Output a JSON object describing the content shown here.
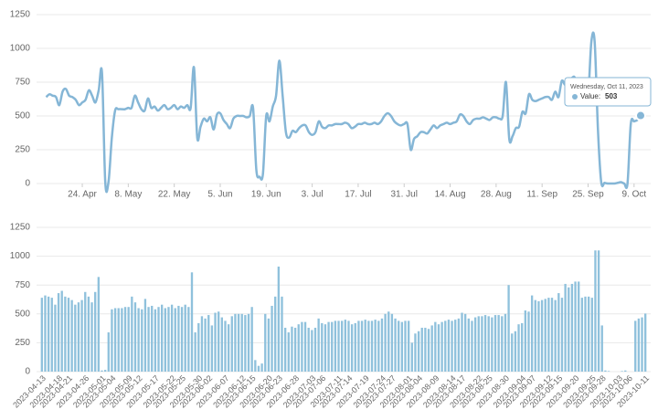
{
  "chart_data": [
    {
      "type": "line",
      "color": "#85b6d6",
      "grid": true,
      "xlim": [
        "2023-04-13",
        "2023-10-11"
      ],
      "x": [
        "2023-04-13",
        "2023-04-14",
        "2023-04-15",
        "2023-04-16",
        "2023-04-17",
        "2023-04-18",
        "2023-04-19",
        "2023-04-20",
        "2023-04-21",
        "2023-04-22",
        "2023-04-23",
        "2023-04-24",
        "2023-04-25",
        "2023-04-26",
        "2023-04-27",
        "2023-04-28",
        "2023-04-29",
        "2023-04-30",
        "2023-05-01",
        "2023-05-02",
        "2023-05-03",
        "2023-05-04",
        "2023-05-05",
        "2023-05-06",
        "2023-05-07",
        "2023-05-08",
        "2023-05-09",
        "2023-05-10",
        "2023-05-11",
        "2023-05-12",
        "2023-05-13",
        "2023-05-14",
        "2023-05-15",
        "2023-05-16",
        "2023-05-17",
        "2023-05-18",
        "2023-05-19",
        "2023-05-20",
        "2023-05-21",
        "2023-05-22",
        "2023-05-23",
        "2023-05-24",
        "2023-05-25",
        "2023-05-26",
        "2023-05-27",
        "2023-05-28",
        "2023-05-29",
        "2023-05-30",
        "2023-05-31",
        "2023-06-01",
        "2023-06-02",
        "2023-06-03",
        "2023-06-04",
        "2023-06-05",
        "2023-06-06",
        "2023-06-07",
        "2023-06-08",
        "2023-06-09",
        "2023-06-10",
        "2023-06-11",
        "2023-06-12",
        "2023-06-13",
        "2023-06-14",
        "2023-06-15",
        "2023-06-16",
        "2023-06-17",
        "2023-06-18",
        "2023-06-19",
        "2023-06-20",
        "2023-06-21",
        "2023-06-22",
        "2023-06-23",
        "2023-06-24",
        "2023-06-25",
        "2023-06-26",
        "2023-06-27",
        "2023-06-28",
        "2023-06-29",
        "2023-06-30",
        "2023-07-01",
        "2023-07-02",
        "2023-07-03",
        "2023-07-04",
        "2023-07-05",
        "2023-07-06",
        "2023-07-07",
        "2023-07-08",
        "2023-07-09",
        "2023-07-10",
        "2023-07-11",
        "2023-07-12",
        "2023-07-13",
        "2023-07-14",
        "2023-07-15",
        "2023-07-16",
        "2023-07-17",
        "2023-07-18",
        "2023-07-19",
        "2023-07-20",
        "2023-07-21",
        "2023-07-22",
        "2023-07-23",
        "2023-07-24",
        "2023-07-25",
        "2023-07-26",
        "2023-07-27",
        "2023-07-28",
        "2023-07-29",
        "2023-07-30",
        "2023-07-31",
        "2023-08-01",
        "2023-08-02",
        "2023-08-03",
        "2023-08-04",
        "2023-08-05",
        "2023-08-06",
        "2023-08-07",
        "2023-08-08",
        "2023-08-09",
        "2023-08-10",
        "2023-08-11",
        "2023-08-12",
        "2023-08-13",
        "2023-08-14",
        "2023-08-15",
        "2023-08-16",
        "2023-08-17",
        "2023-08-18",
        "2023-08-19",
        "2023-08-20",
        "2023-08-21",
        "2023-08-22",
        "2023-08-23",
        "2023-08-24",
        "2023-08-25",
        "2023-08-26",
        "2023-08-27",
        "2023-08-28",
        "2023-08-29",
        "2023-08-30",
        "2023-08-31",
        "2023-09-01",
        "2023-09-02",
        "2023-09-03",
        "2023-09-04",
        "2023-09-05",
        "2023-09-06",
        "2023-09-07",
        "2023-09-08",
        "2023-09-09",
        "2023-09-10",
        "2023-09-11",
        "2023-09-12",
        "2023-09-13",
        "2023-09-14",
        "2023-09-15",
        "2023-09-16",
        "2023-09-17",
        "2023-09-18",
        "2023-09-19",
        "2023-09-20",
        "2023-09-21",
        "2023-09-22",
        "2023-09-23",
        "2023-09-24",
        "2023-09-25",
        "2023-09-26",
        "2023-09-27",
        "2023-09-28",
        "2023-09-29",
        "2023-09-30",
        "2023-10-01",
        "2023-10-02",
        "2023-10-03",
        "2023-10-04",
        "2023-10-05",
        "2023-10-06",
        "2023-10-07",
        "2023-10-08",
        "2023-10-09",
        "2023-10-10",
        "2023-10-11"
      ],
      "values": [
        640,
        660,
        650,
        640,
        580,
        680,
        700,
        650,
        640,
        620,
        580,
        600,
        620,
        690,
        650,
        600,
        690,
        820,
        10,
        15,
        340,
        540,
        550,
        550,
        550,
        560,
        560,
        650,
        600,
        550,
        540,
        630,
        560,
        570,
        540,
        560,
        580,
        550,
        560,
        580,
        550,
        570,
        560,
        580,
        560,
        860,
        340,
        420,
        480,
        460,
        490,
        400,
        510,
        520,
        470,
        440,
        410,
        480,
        500,
        500,
        500,
        490,
        500,
        560,
        100,
        50,
        70,
        500,
        460,
        570,
        650,
        910,
        650,
        380,
        340,
        390,
        380,
        410,
        430,
        430,
        380,
        360,
        380,
        460,
        420,
        410,
        430,
        430,
        440,
        440,
        440,
        450,
        440,
        410,
        420,
        440,
        440,
        450,
        440,
        440,
        450,
        440,
        460,
        500,
        520,
        500,
        460,
        440,
        430,
        440,
        440,
        250,
        330,
        350,
        380,
        380,
        370,
        400,
        430,
        410,
        430,
        440,
        450,
        440,
        450,
        460,
        510,
        500,
        460,
        440,
        470,
        480,
        480,
        490,
        480,
        470,
        490,
        490,
        480,
        500,
        750,
        330,
        350,
        410,
        420,
        530,
        520,
        660,
        620,
        610,
        620,
        630,
        640,
        640,
        620,
        680,
        640,
        760,
        730,
        760,
        780,
        780,
        640,
        650,
        650,
        640,
        1050,
        1050,
        400,
        10,
        5,
        0,
        0,
        0,
        5,
        10,
        0,
        0,
        440,
        460,
        470,
        503
      ],
      "ylim": [
        0,
        1250
      ],
      "yticks": [
        0,
        250,
        500,
        750,
        1000,
        1250
      ],
      "xticks": [
        {
          "value": "2023-04-24",
          "label": "24. Apr"
        },
        {
          "value": "2023-05-08",
          "label": "8. May"
        },
        {
          "value": "2023-05-22",
          "label": "22. May"
        },
        {
          "value": "2023-06-05",
          "label": "5. Jun"
        },
        {
          "value": "2023-06-19",
          "label": "19. Jun"
        },
        {
          "value": "2023-07-03",
          "label": "3. Jul"
        },
        {
          "value": "2023-07-17",
          "label": "17. Jul"
        },
        {
          "value": "2023-07-31",
          "label": "31. Jul"
        },
        {
          "value": "2023-08-14",
          "label": "14. Aug"
        },
        {
          "value": "2023-08-28",
          "label": "28. Aug"
        },
        {
          "value": "2023-09-11",
          "label": "11. Sep"
        },
        {
          "value": "2023-09-25",
          "label": "25. Sep"
        },
        {
          "value": "2023-10-09",
          "label": "9. Oct"
        }
      ],
      "tooltip": {
        "title": "Wednesday, Oct 11, 2023",
        "label": "Value:"
      }
    },
    {
      "type": "bar",
      "color": "#8fc1dc",
      "grid": true,
      "categories": [
        "2023-04-13",
        null,
        null,
        null,
        null,
        "2023-04-18",
        null,
        null,
        "2023-04-21",
        null,
        null,
        null,
        null,
        "2023-04-26",
        null,
        null,
        null,
        null,
        "2023-05-01",
        null,
        null,
        "2023-05-04",
        null,
        null,
        null,
        null,
        "2023-05-09",
        null,
        null,
        "2023-05-12",
        null,
        null,
        null,
        null,
        "2023-05-17",
        null,
        null,
        null,
        null,
        "2023-05-22",
        null,
        null,
        "2023-05-25",
        null,
        null,
        null,
        null,
        "2023-05-30",
        null,
        null,
        "2023-06-02",
        null,
        null,
        null,
        null,
        "2023-06-07",
        null,
        null,
        null,
        null,
        "2023-06-12",
        null,
        null,
        "2023-06-15",
        null,
        null,
        null,
        null,
        "2023-06-20",
        null,
        null,
        "2023-06-23",
        null,
        null,
        null,
        null,
        "2023-06-28",
        null,
        null,
        null,
        null,
        "2023-07-03",
        null,
        null,
        "2023-07-06",
        null,
        null,
        null,
        null,
        "2023-07-11",
        null,
        null,
        "2023-07-14",
        null,
        null,
        null,
        null,
        "2023-07-19",
        null,
        null,
        null,
        null,
        "2023-07-24",
        null,
        null,
        "2023-07-27",
        null,
        null,
        null,
        null,
        "2023-08-01",
        null,
        null,
        "2023-08-04",
        null,
        null,
        null,
        null,
        "2023-08-09",
        null,
        null,
        null,
        null,
        "2023-08-14",
        null,
        null,
        "2023-08-17",
        null,
        null,
        null,
        null,
        "2023-08-22",
        null,
        null,
        "2023-08-25",
        null,
        null,
        null,
        null,
        "2023-08-30",
        null,
        null,
        null,
        null,
        "2023-09-04",
        null,
        null,
        "2023-09-07",
        null,
        null,
        null,
        null,
        "2023-09-12",
        null,
        null,
        "2023-09-15",
        null,
        null,
        null,
        null,
        "2023-09-20",
        null,
        null,
        null,
        null,
        "2023-09-25",
        null,
        null,
        "2023-09-28",
        null,
        null,
        null,
        null,
        "2023-10-03",
        null,
        null,
        "2023-10-06",
        null,
        null,
        null,
        null,
        "2023-10-11"
      ],
      "values": [
        640,
        660,
        650,
        640,
        580,
        680,
        700,
        650,
        640,
        620,
        580,
        600,
        620,
        690,
        650,
        600,
        690,
        820,
        10,
        15,
        340,
        540,
        550,
        550,
        550,
        560,
        560,
        650,
        600,
        550,
        540,
        630,
        560,
        570,
        540,
        560,
        580,
        550,
        560,
        580,
        550,
        570,
        560,
        580,
        560,
        860,
        340,
        420,
        480,
        460,
        490,
        400,
        510,
        520,
        470,
        440,
        410,
        480,
        500,
        500,
        500,
        490,
        500,
        560,
        100,
        50,
        70,
        500,
        460,
        570,
        650,
        910,
        650,
        380,
        340,
        390,
        380,
        410,
        430,
        430,
        380,
        360,
        380,
        460,
        420,
        410,
        430,
        430,
        440,
        440,
        440,
        450,
        440,
        410,
        420,
        440,
        440,
        450,
        440,
        440,
        450,
        440,
        460,
        500,
        520,
        500,
        460,
        440,
        430,
        440,
        440,
        250,
        330,
        350,
        380,
        380,
        370,
        400,
        430,
        410,
        430,
        440,
        450,
        440,
        450,
        460,
        510,
        500,
        460,
        440,
        470,
        480,
        480,
        490,
        480,
        470,
        490,
        490,
        480,
        500,
        750,
        330,
        350,
        410,
        420,
        530,
        520,
        660,
        620,
        610,
        620,
        630,
        640,
        640,
        620,
        680,
        640,
        760,
        730,
        760,
        780,
        780,
        640,
        650,
        650,
        640,
        1050,
        1050,
        400,
        10,
        5,
        0,
        0,
        0,
        5,
        10,
        0,
        0,
        440,
        460,
        470,
        503
      ],
      "ylim": [
        0,
        1250
      ],
      "yticks": [
        0,
        250,
        500,
        750,
        1000,
        1250
      ]
    }
  ]
}
